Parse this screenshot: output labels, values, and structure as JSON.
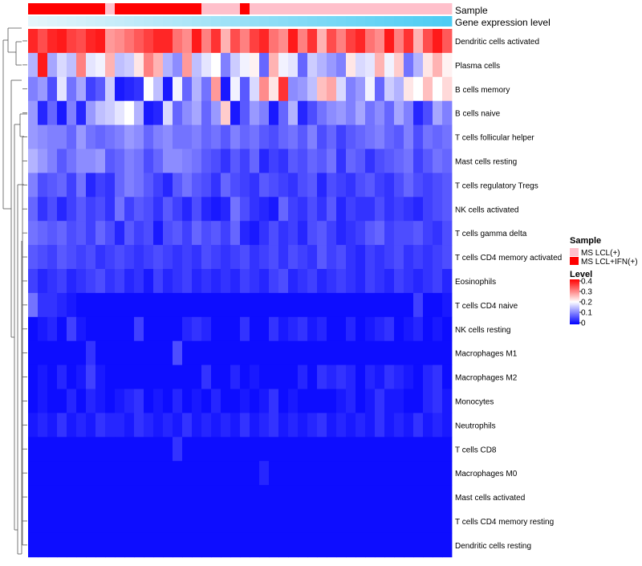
{
  "colors": {
    "low": "#0000ff",
    "mid": "#ffffff",
    "high": "#ff0000",
    "sample_lcl": "#ffc0cb",
    "sample_ifn": "#ff0000"
  },
  "chart_data": {
    "type": "heatmap",
    "annotations": {
      "sample_label": "Sample",
      "gene_label": "Gene expression level",
      "sample": [
        1,
        1,
        1,
        1,
        1,
        1,
        1,
        1,
        0,
        1,
        1,
        1,
        1,
        1,
        1,
        1,
        1,
        1,
        0,
        0,
        0,
        0,
        1,
        0,
        0,
        0,
        0,
        0,
        0,
        0,
        0,
        0,
        0,
        0,
        0,
        0,
        0,
        0,
        0,
        0,
        0,
        0,
        0,
        0
      ],
      "gene_expression": [
        0.05,
        0.07,
        0.09,
        0.11,
        0.13,
        0.15,
        0.17,
        0.19,
        0.21,
        0.23,
        0.25,
        0.27,
        0.29,
        0.31,
        0.33,
        0.35,
        0.37,
        0.39,
        0.41,
        0.43,
        0.45,
        0.47,
        0.49,
        0.51,
        0.53,
        0.55,
        0.57,
        0.59,
        0.61,
        0.63,
        0.65,
        0.67,
        0.69,
        0.71,
        0.73,
        0.75,
        0.77,
        0.79,
        0.81,
        0.83,
        0.85,
        0.87,
        0.89,
        0.91
      ]
    },
    "rows": [
      {
        "label": "Dendritic cells activated",
        "values": [
          0.37,
          0.34,
          0.37,
          0.38,
          0.35,
          0.34,
          0.37,
          0.38,
          0.28,
          0.29,
          0.31,
          0.33,
          0.35,
          0.37,
          0.37,
          0.31,
          0.29,
          0.38,
          0.3,
          0.36,
          0.26,
          0.34,
          0.3,
          0.35,
          0.37,
          0.31,
          0.29,
          0.38,
          0.3,
          0.36,
          0.26,
          0.34,
          0.3,
          0.35,
          0.37,
          0.31,
          0.29,
          0.38,
          0.3,
          0.36,
          0.26,
          0.34,
          0.38,
          0.33
        ]
      },
      {
        "label": "Plasma cells",
        "values": [
          0.14,
          0.38,
          0.13,
          0.17,
          0.15,
          0.3,
          0.18,
          0.19,
          0.26,
          0.15,
          0.16,
          0.22,
          0.3,
          0.26,
          0.14,
          0.11,
          0.28,
          0.15,
          0.18,
          0.2,
          0.1,
          0.16,
          0.19,
          0.21,
          0.08,
          0.26,
          0.19,
          0.18,
          0.08,
          0.16,
          0.14,
          0.12,
          0.1,
          0.22,
          0.17,
          0.18,
          0.26,
          0.19,
          0.24,
          0.09,
          0.14,
          0.22,
          0.26,
          0.21
        ]
      },
      {
        "label": "B cells memory",
        "values": [
          0.1,
          0.12,
          0.06,
          0.18,
          0.09,
          0.13,
          0.05,
          0.07,
          0.16,
          0.02,
          0.03,
          0.04,
          0.2,
          0.15,
          0.02,
          0.19,
          0.08,
          0.14,
          0.09,
          0.28,
          0.02,
          0.19,
          0.07,
          0.17,
          0.29,
          0.22,
          0.36,
          0.11,
          0.12,
          0.15,
          0.25,
          0.27,
          0.17,
          0.1,
          0.12,
          0.19,
          0.08,
          0.16,
          0.14,
          0.22,
          0.2,
          0.25,
          0.2,
          0.23
        ]
      },
      {
        "label": "B cells naive",
        "values": [
          0.12,
          0.03,
          0.08,
          0.02,
          0.1,
          0.03,
          0.12,
          0.15,
          0.16,
          0.18,
          0.2,
          0.14,
          0.02,
          0.03,
          0.17,
          0.08,
          0.11,
          0.13,
          0.08,
          0.12,
          0.24,
          0.02,
          0.07,
          0.12,
          0.1,
          0.02,
          0.08,
          0.14,
          0.03,
          0.06,
          0.09,
          0.11,
          0.12,
          0.1,
          0.13,
          0.09,
          0.11,
          0.08,
          0.13,
          0.1,
          0.03,
          0.06,
          0.13,
          0.1
        ]
      },
      {
        "label": "T cells follicular helper",
        "values": [
          0.12,
          0.11,
          0.1,
          0.1,
          0.08,
          0.12,
          0.09,
          0.08,
          0.09,
          0.1,
          0.12,
          0.11,
          0.08,
          0.1,
          0.11,
          0.09,
          0.09,
          0.1,
          0.08,
          0.09,
          0.07,
          0.1,
          0.08,
          0.09,
          0.07,
          0.06,
          0.08,
          0.09,
          0.07,
          0.1,
          0.06,
          0.08,
          0.05,
          0.07,
          0.08,
          0.09,
          0.1,
          0.08,
          0.07,
          0.1,
          0.06,
          0.09,
          0.08,
          0.09
        ]
      },
      {
        "label": "Mast cells resting",
        "values": [
          0.14,
          0.12,
          0.1,
          0.07,
          0.09,
          0.11,
          0.11,
          0.12,
          0.07,
          0.08,
          0.1,
          0.09,
          0.06,
          0.08,
          0.11,
          0.11,
          0.1,
          0.09,
          0.07,
          0.06,
          0.04,
          0.07,
          0.05,
          0.08,
          0.03,
          0.05,
          0.04,
          0.07,
          0.06,
          0.08,
          0.07,
          0.09,
          0.04,
          0.08,
          0.07,
          0.04,
          0.06,
          0.07,
          0.08,
          0.09,
          0.05,
          0.07,
          0.09,
          0.08
        ]
      },
      {
        "label": "T cells regulatory  Tregs",
        "values": [
          0.1,
          0.06,
          0.07,
          0.08,
          0.05,
          0.09,
          0.03,
          0.05,
          0.04,
          0.08,
          0.1,
          0.09,
          0.07,
          0.05,
          0.03,
          0.07,
          0.09,
          0.07,
          0.06,
          0.04,
          0.08,
          0.06,
          0.05,
          0.04,
          0.07,
          0.06,
          0.05,
          0.04,
          0.06,
          0.07,
          0.03,
          0.06,
          0.05,
          0.04,
          0.06,
          0.07,
          0.05,
          0.04,
          0.06,
          0.08,
          0.06,
          0.05,
          0.06,
          0.07
        ]
      },
      {
        "label": "NK cells activated",
        "values": [
          0.08,
          0.04,
          0.06,
          0.03,
          0.05,
          0.07,
          0.05,
          0.06,
          0.04,
          0.09,
          0.05,
          0.07,
          0.06,
          0.04,
          0.07,
          0.05,
          0.03,
          0.06,
          0.03,
          0.02,
          0.03,
          0.09,
          0.06,
          0.04,
          0.03,
          0.02,
          0.08,
          0.05,
          0.04,
          0.06,
          0.04,
          0.07,
          0.03,
          0.05,
          0.04,
          0.04,
          0.06,
          0.04,
          0.05,
          0.04,
          0.03,
          0.05,
          0.06,
          0.07
        ]
      },
      {
        "label": "T cells gamma delta",
        "values": [
          0.09,
          0.08,
          0.07,
          0.08,
          0.06,
          0.07,
          0.05,
          0.08,
          0.06,
          0.03,
          0.07,
          0.05,
          0.06,
          0.02,
          0.06,
          0.07,
          0.05,
          0.08,
          0.06,
          0.07,
          0.05,
          0.08,
          0.03,
          0.02,
          0.04,
          0.06,
          0.04,
          0.05,
          0.03,
          0.06,
          0.07,
          0.05,
          0.03,
          0.04,
          0.05,
          0.07,
          0.08,
          0.05,
          0.06,
          0.06,
          0.07,
          0.05,
          0.04,
          0.06
        ]
      },
      {
        "label": "T cells CD4 memory activated",
        "values": [
          0.07,
          0.06,
          0.05,
          0.07,
          0.06,
          0.05,
          0.06,
          0.04,
          0.05,
          0.06,
          0.05,
          0.04,
          0.05,
          0.06,
          0.05,
          0.04,
          0.05,
          0.04,
          0.06,
          0.05,
          0.04,
          0.05,
          0.06,
          0.04,
          0.05,
          0.06,
          0.04,
          0.06,
          0.05,
          0.04,
          0.07,
          0.05,
          0.06,
          0.04,
          0.03,
          0.05,
          0.04,
          0.05,
          0.06,
          0.04,
          0.05,
          0.04,
          0.05,
          0.06
        ]
      },
      {
        "label": "Eosinophils",
        "values": [
          0.05,
          0.03,
          0.04,
          0.05,
          0.03,
          0.04,
          0.05,
          0.06,
          0.04,
          0.05,
          0.03,
          0.04,
          0.02,
          0.05,
          0.03,
          0.04,
          0.05,
          0.03,
          0.04,
          0.03,
          0.04,
          0.03,
          0.05,
          0.04,
          0.03,
          0.05,
          0.06,
          0.03,
          0.04,
          0.05,
          0.03,
          0.04,
          0.05,
          0.04,
          0.03,
          0.05,
          0.04,
          0.03,
          0.05,
          0.04,
          0.03,
          0.04,
          0.05,
          0.03
        ]
      },
      {
        "label": "T cells CD4 naive",
        "values": [
          0.09,
          0.04,
          0.04,
          0.03,
          0.02,
          0.01,
          0.01,
          0.01,
          0.01,
          0.01,
          0.01,
          0.01,
          0.01,
          0.01,
          0.01,
          0.01,
          0.01,
          0.01,
          0.01,
          0.01,
          0.01,
          0.01,
          0.01,
          0.01,
          0.01,
          0.01,
          0.01,
          0.01,
          0.01,
          0.01,
          0.01,
          0.01,
          0.01,
          0.01,
          0.01,
          0.01,
          0.01,
          0.01,
          0.01,
          0.01,
          0.05,
          0.01,
          0.01,
          0.02
        ]
      },
      {
        "label": "NK cells resting",
        "values": [
          0.01,
          0.02,
          0.03,
          0.01,
          0.05,
          0.02,
          0.01,
          0.01,
          0.01,
          0.01,
          0.01,
          0.05,
          0.01,
          0.01,
          0.01,
          0.01,
          0.03,
          0.04,
          0.03,
          0.01,
          0.01,
          0.01,
          0.04,
          0.01,
          0.01,
          0.04,
          0.02,
          0.03,
          0.04,
          0.02,
          0.03,
          0.01,
          0.01,
          0.03,
          0.01,
          0.02,
          0.03,
          0.04,
          0.01,
          0.02,
          0.03,
          0.01,
          0.02,
          0.01
        ]
      },
      {
        "label": "Macrophages M1",
        "values": [
          0.01,
          0.01,
          0.01,
          0.01,
          0.01,
          0.01,
          0.04,
          0.01,
          0.01,
          0.01,
          0.01,
          0.01,
          0.01,
          0.01,
          0.01,
          0.06,
          0.01,
          0.01,
          0.01,
          0.01,
          0.01,
          0.01,
          0.01,
          0.01,
          0.01,
          0.01,
          0.01,
          0.01,
          0.01,
          0.01,
          0.01,
          0.01,
          0.01,
          0.01,
          0.01,
          0.01,
          0.01,
          0.01,
          0.01,
          0.01,
          0.01,
          0.01,
          0.01,
          0.01
        ]
      },
      {
        "label": "Macrophages M2",
        "values": [
          0.01,
          0.02,
          0.01,
          0.03,
          0.01,
          0.02,
          0.05,
          0.02,
          0.01,
          0.01,
          0.01,
          0.01,
          0.01,
          0.01,
          0.01,
          0.01,
          0.01,
          0.01,
          0.04,
          0.01,
          0.01,
          0.03,
          0.01,
          0.02,
          0.01,
          0.01,
          0.01,
          0.01,
          0.03,
          0.01,
          0.04,
          0.03,
          0.04,
          0.03,
          0.01,
          0.03,
          0.02,
          0.04,
          0.03,
          0.02,
          0.01,
          0.03,
          0.04,
          0.01
        ]
      },
      {
        "label": "Monocytes",
        "values": [
          0.01,
          0.02,
          0.01,
          0.01,
          0.03,
          0.01,
          0.03,
          0.02,
          0.01,
          0.02,
          0.03,
          0.04,
          0.01,
          0.02,
          0.01,
          0.03,
          0.01,
          0.02,
          0.01,
          0.03,
          0.01,
          0.01,
          0.02,
          0.01,
          0.02,
          0.04,
          0.01,
          0.02,
          0.01,
          0.01,
          0.01,
          0.01,
          0.02,
          0.03,
          0.01,
          0.02,
          0.04,
          0.02,
          0.02,
          0.01,
          0.01,
          0.03,
          0.04,
          0.02
        ]
      },
      {
        "label": "Neutrophils",
        "values": [
          0.02,
          0.03,
          0.02,
          0.04,
          0.02,
          0.03,
          0.02,
          0.04,
          0.03,
          0.03,
          0.02,
          0.04,
          0.03,
          0.02,
          0.03,
          0.02,
          0.04,
          0.02,
          0.03,
          0.02,
          0.03,
          0.02,
          0.04,
          0.02,
          0.03,
          0.04,
          0.02,
          0.03,
          0.02,
          0.03,
          0.04,
          0.02,
          0.03,
          0.02,
          0.03,
          0.02,
          0.04,
          0.02,
          0.03,
          0.02,
          0.04,
          0.02,
          0.03,
          0.02
        ]
      },
      {
        "label": "T cells CD8",
        "values": [
          0.01,
          0.01,
          0.01,
          0.01,
          0.01,
          0.01,
          0.01,
          0.01,
          0.01,
          0.01,
          0.01,
          0.01,
          0.01,
          0.01,
          0.01,
          0.04,
          0.01,
          0.01,
          0.01,
          0.01,
          0.01,
          0.01,
          0.01,
          0.01,
          0.01,
          0.01,
          0.01,
          0.01,
          0.01,
          0.01,
          0.01,
          0.01,
          0.01,
          0.01,
          0.01,
          0.01,
          0.01,
          0.01,
          0.01,
          0.01,
          0.01,
          0.01,
          0.01,
          0.01
        ]
      },
      {
        "label": "Macrophages M0",
        "values": [
          0.01,
          0.01,
          0.01,
          0.01,
          0.01,
          0.01,
          0.01,
          0.01,
          0.01,
          0.01,
          0.01,
          0.01,
          0.01,
          0.01,
          0.01,
          0.01,
          0.01,
          0.01,
          0.01,
          0.01,
          0.01,
          0.01,
          0.01,
          0.01,
          0.03,
          0.01,
          0.01,
          0.01,
          0.01,
          0.01,
          0.01,
          0.01,
          0.01,
          0.01,
          0.01,
          0.01,
          0.01,
          0.01,
          0.01,
          0.01,
          0.01,
          0.01,
          0.01,
          0.01
        ]
      },
      {
        "label": "Mast cells activated",
        "values": [
          0.01,
          0.01,
          0.01,
          0.01,
          0.01,
          0.01,
          0.01,
          0.01,
          0.01,
          0.01,
          0.01,
          0.01,
          0.01,
          0.01,
          0.01,
          0.01,
          0.01,
          0.01,
          0.01,
          0.01,
          0.01,
          0.01,
          0.01,
          0.01,
          0.01,
          0.01,
          0.01,
          0.01,
          0.01,
          0.01,
          0.01,
          0.01,
          0.01,
          0.01,
          0.01,
          0.01,
          0.01,
          0.01,
          0.01,
          0.01,
          0.01,
          0.01,
          0.01,
          0.01
        ]
      },
      {
        "label": "T cells CD4 memory resting",
        "values": [
          0.01,
          0.01,
          0.01,
          0.01,
          0.01,
          0.01,
          0.01,
          0.01,
          0.01,
          0.01,
          0.01,
          0.01,
          0.01,
          0.01,
          0.01,
          0.01,
          0.01,
          0.01,
          0.01,
          0.01,
          0.01,
          0.01,
          0.01,
          0.01,
          0.01,
          0.01,
          0.01,
          0.01,
          0.01,
          0.01,
          0.01,
          0.01,
          0.01,
          0.01,
          0.01,
          0.01,
          0.01,
          0.01,
          0.01,
          0.01,
          0.01,
          0.01,
          0.01,
          0.01
        ]
      },
      {
        "label": "Dendritic cells resting",
        "values": [
          0.01,
          0.01,
          0.01,
          0.01,
          0.01,
          0.01,
          0.01,
          0.01,
          0.01,
          0.01,
          0.01,
          0.01,
          0.01,
          0.01,
          0.01,
          0.01,
          0.01,
          0.01,
          0.01,
          0.01,
          0.01,
          0.01,
          0.01,
          0.01,
          0.01,
          0.01,
          0.01,
          0.01,
          0.01,
          0.01,
          0.01,
          0.01,
          0.01,
          0.01,
          0.01,
          0.01,
          0.01,
          0.01,
          0.01,
          0.01,
          0.01,
          0.01,
          0.01,
          0.01
        ]
      }
    ],
    "legend": {
      "sample_title": "Sample",
      "sample_entries": [
        "MS LCL(+)",
        "MS LCL+IFN(+)"
      ],
      "level_title": "Level",
      "level_ticks": [
        "0.4",
        "0.3",
        "0.2",
        "0.1",
        "0"
      ],
      "level_range": [
        0,
        0.4
      ]
    }
  }
}
